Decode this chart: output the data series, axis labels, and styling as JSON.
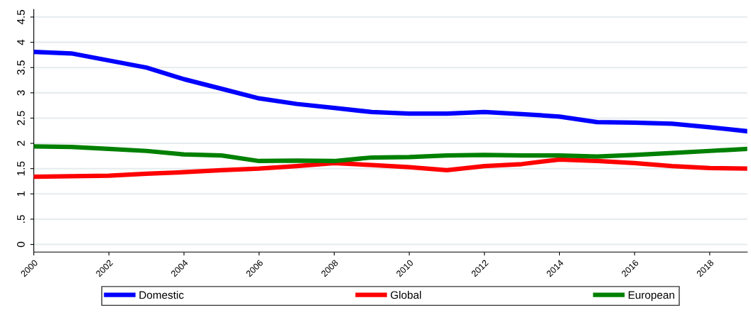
{
  "chart_data": {
    "type": "line",
    "x": [
      2000,
      2001,
      2002,
      2003,
      2004,
      2005,
      2006,
      2007,
      2008,
      2009,
      2010,
      2011,
      2012,
      2013,
      2014,
      2015,
      2016,
      2017,
      2018,
      2019
    ],
    "series": [
      {
        "name": "Domestic",
        "color": "#0000ff",
        "values": [
          3.81,
          3.78,
          3.64,
          3.5,
          3.27,
          3.08,
          2.89,
          2.78,
          2.7,
          2.62,
          2.59,
          2.59,
          2.62,
          2.58,
          2.53,
          2.42,
          2.41,
          2.39,
          2.32,
          2.24
        ]
      },
      {
        "name": "Global",
        "color": "#ff0000",
        "values": [
          1.34,
          1.35,
          1.36,
          1.4,
          1.43,
          1.47,
          1.5,
          1.55,
          1.61,
          1.57,
          1.53,
          1.47,
          1.55,
          1.59,
          1.68,
          1.65,
          1.61,
          1.55,
          1.51,
          1.5
        ]
      },
      {
        "name": "European",
        "color": "#008000",
        "values": [
          1.94,
          1.93,
          1.89,
          1.85,
          1.78,
          1.76,
          1.65,
          1.66,
          1.65,
          1.72,
          1.73,
          1.76,
          1.77,
          1.76,
          1.76,
          1.74,
          1.77,
          1.81,
          1.85,
          1.89
        ]
      }
    ],
    "xlim": [
      2000,
      2019
    ],
    "xticks": [
      2000,
      2002,
      2004,
      2006,
      2008,
      2010,
      2012,
      2014,
      2016,
      2018
    ],
    "ylim": [
      -0.15,
      4.65
    ],
    "yticks": [
      0,
      {
        "value": 0.5,
        "label": ".5"
      },
      1,
      1.5,
      2,
      2.5,
      3,
      3.5,
      4,
      4.5
    ],
    "grid": "y",
    "legend": "bottom",
    "marker": "none",
    "line_style": "solid"
  }
}
